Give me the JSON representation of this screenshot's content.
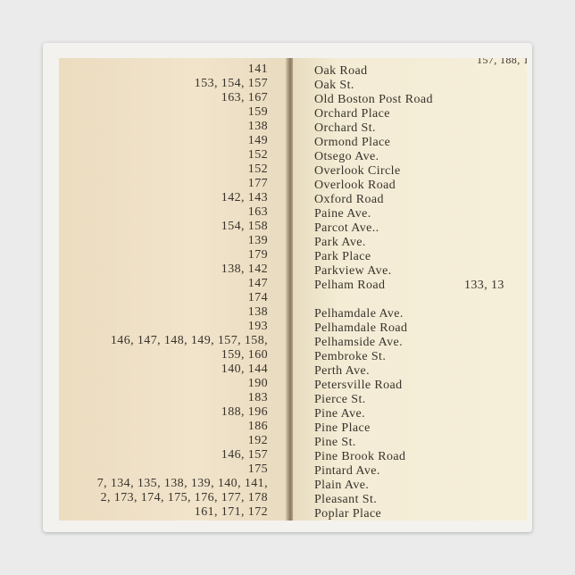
{
  "left_numbers": [
    "141",
    "153, 154, 157",
    "163, 167",
    "159",
    "138",
    "149",
    "152",
    "152",
    "177",
    "142, 143",
    "163",
    "154, 158",
    "139",
    "179",
    "138, 142",
    "147",
    "174",
    "138",
    "193",
    "146, 147, 148, 149, 157, 158,",
    "159, 160",
    "140, 144",
    "190",
    "183",
    "188, 196",
    "186",
    "192",
    "146, 157",
    "175",
    "7, 134, 135, 138, 139, 140, 141,",
    "2, 173, 174, 175, 176, 177, 178",
    "161, 171, 172"
  ],
  "top_right": "157, 188, 1",
  "right_entries": [
    "Oak Road",
    "Oak St.",
    "Old Boston Post Road",
    "Orchard Place",
    "Orchard St.",
    "Ormond Place",
    "Otsego Ave.",
    "Overlook Circle",
    "Overlook Road",
    "Oxford Road",
    "Paine Ave.",
    "Parcot Ave..",
    "Park Ave.",
    "Park Place",
    "Parkview Ave.",
    "Pelham Road",
    "Pelhamdale Ave.",
    "Pelhamdale Road",
    "Pelhamside Ave.",
    "Pembroke St.",
    "Perth Ave.",
    "Petersville Road",
    "Pierce St.",
    "Pine Ave.",
    "Pine Place",
    "Pine St.",
    "Pine Brook Road",
    "Pintard Ave.",
    "Plain Ave.",
    "Pleasant St.",
    "Poplar Place"
  ],
  "pelham_pages": "133, 13"
}
